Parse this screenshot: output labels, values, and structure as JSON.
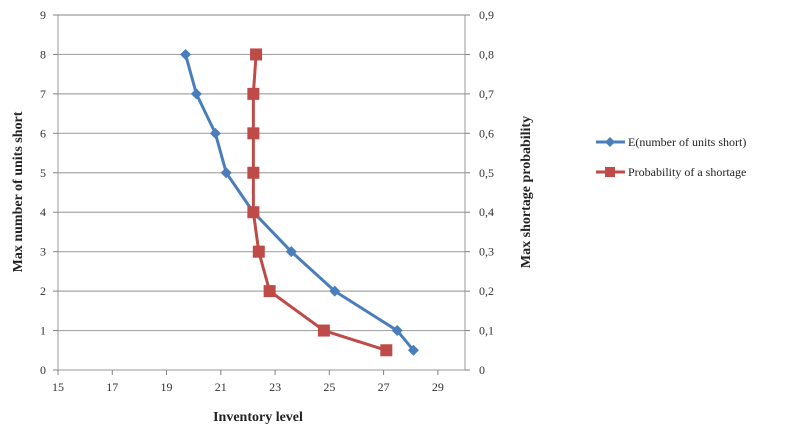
{
  "chart_data": {
    "type": "line",
    "xlabel": "Inventory level",
    "ylabel_left": "Max number of units short",
    "ylabel_right": "Max shortage probability",
    "xlim": [
      15,
      30
    ],
    "xticks": [
      "15",
      "17",
      "19",
      "21",
      "23",
      "25",
      "27",
      "29"
    ],
    "ylim_left": [
      0,
      9
    ],
    "yticks_left": [
      "0",
      "1",
      "2",
      "3",
      "4",
      "5",
      "6",
      "7",
      "8",
      "9"
    ],
    "ylim_right": [
      0,
      0.9
    ],
    "yticks_right": [
      "0",
      "0,1",
      "0,2",
      "0,3",
      "0,4",
      "0,5",
      "0,6",
      "0,7",
      "0,8",
      "0,9"
    ],
    "grid": "horizontal",
    "legend_position": "right",
    "series": [
      {
        "name": "E(number of units short)",
        "axis": "left",
        "color": "#4a7ebb",
        "marker": "diamond",
        "points": [
          {
            "x": 19.7,
            "y": 8
          },
          {
            "x": 20.1,
            "y": 7
          },
          {
            "x": 20.8,
            "y": 6
          },
          {
            "x": 21.2,
            "y": 5
          },
          {
            "x": 22.2,
            "y": 4
          },
          {
            "x": 23.6,
            "y": 3
          },
          {
            "x": 25.2,
            "y": 2
          },
          {
            "x": 27.5,
            "y": 1
          },
          {
            "x": 28.1,
            "y": 0.5
          }
        ]
      },
      {
        "name": "Probability of a shortage",
        "axis": "right",
        "color": "#be4b48",
        "marker": "square",
        "points": [
          {
            "x": 22.3,
            "y": 0.8
          },
          {
            "x": 22.2,
            "y": 0.7
          },
          {
            "x": 22.2,
            "y": 0.6
          },
          {
            "x": 22.2,
            "y": 0.5
          },
          {
            "x": 22.2,
            "y": 0.4
          },
          {
            "x": 22.4,
            "y": 0.3
          },
          {
            "x": 22.8,
            "y": 0.2
          },
          {
            "x": 24.8,
            "y": 0.1
          },
          {
            "x": 27.1,
            "y": 0.05
          }
        ]
      }
    ]
  }
}
